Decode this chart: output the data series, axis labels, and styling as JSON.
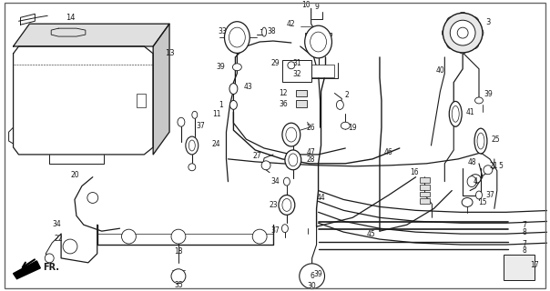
{
  "bg_color": "#ffffff",
  "line_color": "#1a1a1a",
  "fig_width": 6.04,
  "fig_height": 3.2,
  "dpi": 100
}
